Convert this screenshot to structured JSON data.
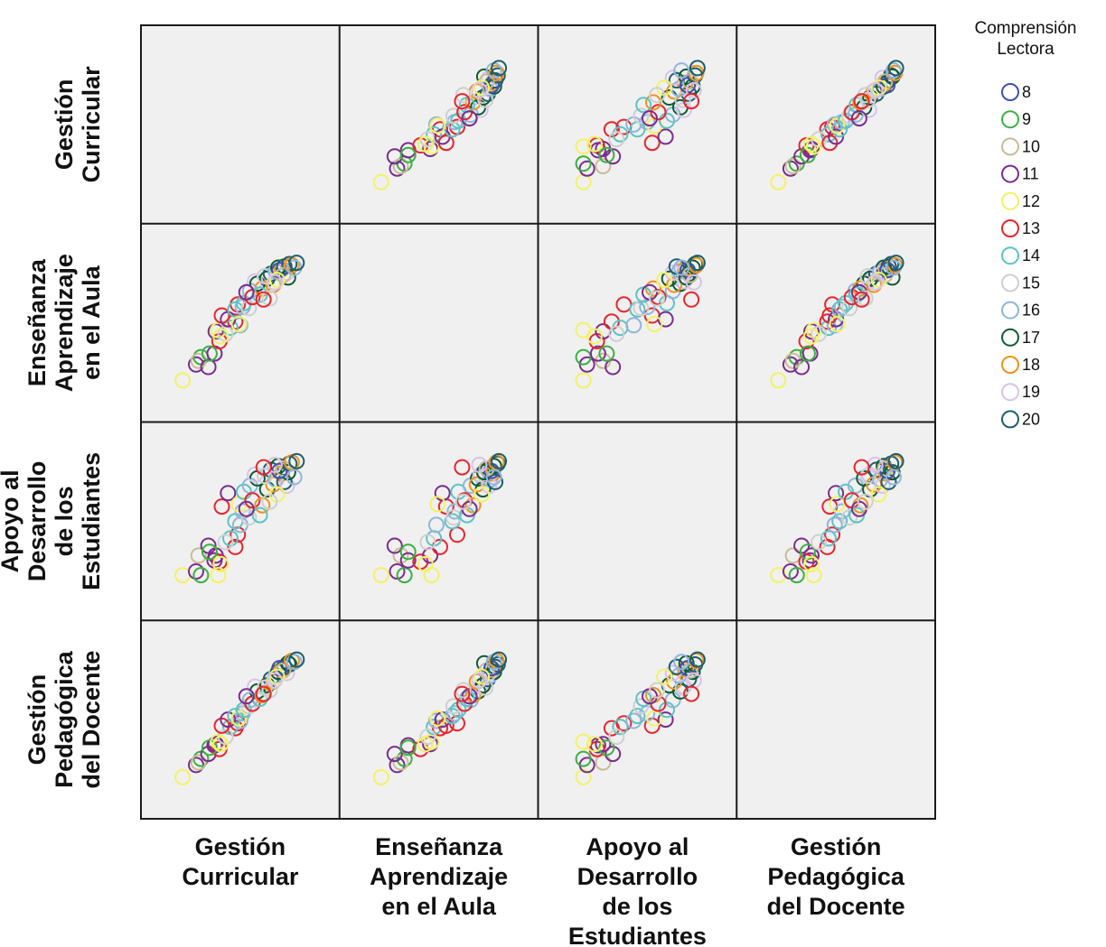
{
  "chart_data": {
    "type": "scatter",
    "subtype": "scatterplot-matrix",
    "variables": [
      [
        "Gestión",
        "Curricular"
      ],
      [
        "Enseñanza",
        "Aprendizaje",
        "en el Aula"
      ],
      [
        "Apoyo al",
        "Desarrollo",
        "de los",
        "Estudiantes"
      ],
      [
        "Gestión",
        "Pedagógica",
        "del Docente"
      ]
    ],
    "variable_ranges": [
      [
        0,
        10
      ],
      [
        0,
        10
      ],
      [
        0,
        10
      ],
      [
        0,
        10
      ]
    ],
    "diagonal_empty": true,
    "legend": {
      "title": [
        "Comprensión",
        "Lectora"
      ],
      "placement": "right",
      "groups": [
        {
          "label": "8",
          "color": "#3f51b5"
        },
        {
          "label": "9",
          "color": "#3cb043"
        },
        {
          "label": "10",
          "color": "#c8bc96"
        },
        {
          "label": "11",
          "color": "#7b2d8e"
        },
        {
          "label": "12",
          "color": "#f2f266"
        },
        {
          "label": "13",
          "color": "#e8262d"
        },
        {
          "label": "14",
          "color": "#5bc4c4"
        },
        {
          "label": "15",
          "color": "#cfcfcf"
        },
        {
          "label": "16",
          "color": "#8fb6dc"
        },
        {
          "label": "17",
          "color": "#0f5c32"
        },
        {
          "label": "18",
          "color": "#f0921e"
        },
        {
          "label": "19",
          "color": "#d9c2ea"
        },
        {
          "label": "20",
          "color": "#1f5f6b"
        }
      ]
    },
    "observations": [
      {
        "g": "12",
        "v": [
          0.3,
          0.3,
          0.6,
          0.3
        ]
      },
      {
        "g": "11",
        "v": [
          1.4,
          1.6,
          0.9,
          1.3
        ]
      },
      {
        "g": "9",
        "v": [
          1.8,
          2.2,
          0.6,
          1.8
        ]
      },
      {
        "g": "10",
        "v": [
          1.6,
          1.9,
          2.2,
          1.5
        ]
      },
      {
        "g": "11",
        "v": [
          2.4,
          1.4,
          3.0,
          2.2
        ]
      },
      {
        "g": "11",
        "v": [
          2.9,
          2.5,
          1.8,
          2.9
        ]
      },
      {
        "g": "13",
        "v": [
          3.3,
          3.5,
          1.7,
          2.6
        ]
      },
      {
        "g": "11",
        "v": [
          3.0,
          4.3,
          2.2,
          3.0
        ]
      },
      {
        "g": "13",
        "v": [
          4.6,
          5.1,
          2.9,
          4.3
        ]
      },
      {
        "g": "9",
        "v": [
          2.5,
          2.5,
          2.5,
          2.7
        ]
      },
      {
        "g": "12",
        "v": [
          3.2,
          4.4,
          0.6,
          3.2
        ]
      },
      {
        "g": "13",
        "v": [
          4.8,
          6.5,
          3.9,
          4.7
        ]
      },
      {
        "g": "14",
        "v": [
          4.2,
          4.6,
          3.6,
          4.4
        ]
      },
      {
        "g": "16",
        "v": [
          5.0,
          4.8,
          4.7,
          4.9
        ]
      },
      {
        "g": "15",
        "v": [
          3.8,
          4.1,
          3.3,
          3.6
        ]
      },
      {
        "g": "12",
        "v": [
          3.4,
          3.9,
          1.5,
          3.0
        ]
      },
      {
        "g": "13",
        "v": [
          3.5,
          5.6,
          6.2,
          4.5
        ]
      },
      {
        "g": "11",
        "v": [
          4.0,
          5.3,
          7.3,
          5.0
        ]
      },
      {
        "g": "14",
        "v": [
          4.6,
          6.1,
          5.0,
          5.3
        ]
      },
      {
        "g": "16",
        "v": [
          5.2,
          6.3,
          5.8,
          5.5
        ]
      },
      {
        "g": "12",
        "v": [
          4.9,
          4.9,
          6.4,
          5.1
        ]
      },
      {
        "g": "14",
        "v": [
          5.3,
          6.6,
          7.4,
          5.8
        ]
      },
      {
        "g": "15",
        "v": [
          5.7,
          6.2,
          5.3,
          6.1
        ]
      },
      {
        "g": "16",
        "v": [
          5.8,
          7.6,
          7.9,
          6.6
        ]
      },
      {
        "g": "13",
        "v": [
          6.0,
          7.1,
          6.7,
          6.3
        ]
      },
      {
        "g": "17",
        "v": [
          6.4,
          8.2,
          8.5,
          7.3
        ]
      },
      {
        "g": "18",
        "v": [
          6.8,
          7.8,
          6.3,
          7.0
        ]
      },
      {
        "g": "19",
        "v": [
          6.2,
          8.4,
          8.8,
          7.7
        ]
      },
      {
        "g": "17",
        "v": [
          7.2,
          8.6,
          7.6,
          7.8
        ]
      },
      {
        "g": "20",
        "v": [
          7.5,
          9.0,
          9.2,
          8.3
        ]
      },
      {
        "g": "18",
        "v": [
          7.7,
          8.1,
          8.0,
          8.1
        ]
      },
      {
        "g": "14",
        "v": [
          6.6,
          7.3,
          5.5,
          6.7
        ]
      },
      {
        "g": "15",
        "v": [
          7.0,
          8.8,
          8.7,
          7.6
        ]
      },
      {
        "g": "16",
        "v": [
          7.9,
          9.2,
          8.4,
          8.6
        ]
      },
      {
        "g": "17",
        "v": [
          8.1,
          9.5,
          9.5,
          8.9
        ]
      },
      {
        "g": "18",
        "v": [
          8.4,
          9.4,
          8.9,
          9.1
        ]
      },
      {
        "g": "19",
        "v": [
          8.8,
          9.1,
          7.9,
          8.8
        ]
      },
      {
        "g": "20",
        "v": [
          9.0,
          9.8,
          9.7,
          9.5
        ]
      },
      {
        "g": "20",
        "v": [
          8.6,
          9.6,
          8.2,
          9.3
        ]
      },
      {
        "g": "17",
        "v": [
          8.9,
          8.7,
          9.0,
          9.6
        ]
      },
      {
        "g": "10",
        "v": [
          8.5,
          8.9,
          9.3,
          9.0
        ]
      },
      {
        "g": "8",
        "v": [
          8.2,
          9.3,
          9.1,
          9.2
        ]
      },
      {
        "g": "12",
        "v": [
          8.0,
          8.5,
          7.2,
          8.5
        ]
      },
      {
        "g": "11",
        "v": [
          5.5,
          7.5,
          6.0,
          6.9
        ]
      },
      {
        "g": "15",
        "v": [
          7.4,
          7.0,
          6.6,
          7.4
        ]
      },
      {
        "g": "19",
        "v": [
          7.8,
          8.3,
          9.6,
          8.2
        ]
      },
      {
        "g": "13",
        "v": [
          6.9,
          6.9,
          9.4,
          7.1
        ]
      },
      {
        "g": "18",
        "v": [
          9.2,
          9.7,
          9.8,
          9.8
        ]
      },
      {
        "g": "16",
        "v": [
          9.4,
          9.5,
          8.6,
          9.7
        ]
      },
      {
        "g": "20",
        "v": [
          9.6,
          9.9,
          9.9,
          9.9
        ]
      }
    ]
  }
}
